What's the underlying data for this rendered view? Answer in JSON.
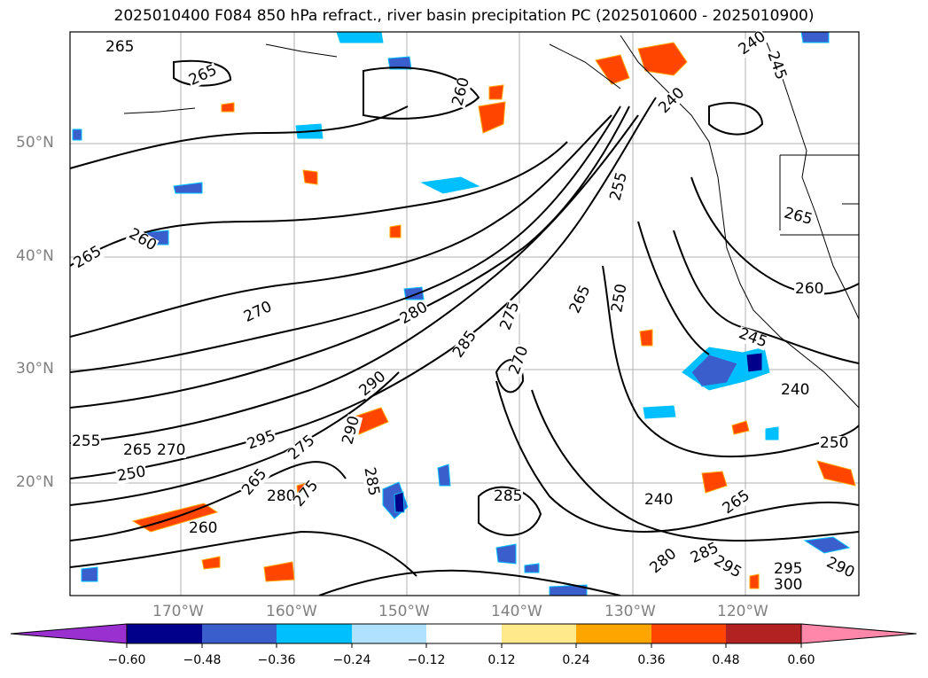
{
  "title": "2025010400 F084 850 hPa refract., river basin precipitation PC (2025010600 - 2025010900)",
  "lat_labels": [
    "50°N",
    "40°N",
    "30°N",
    "20°N"
  ],
  "lon_labels": [
    "170°W",
    "160°W",
    "150°W",
    "140°W",
    "130°W",
    "120°W"
  ],
  "contour_labels": [
    "265",
    "265",
    "260",
    "265",
    "270",
    "280",
    "285",
    "290",
    "295",
    "255",
    "265",
    "270",
    "250",
    "275",
    "280",
    "260",
    "265",
    "275",
    "290",
    "285",
    "285",
    "270",
    "275",
    "260",
    "250",
    "265",
    "255",
    "240",
    "245",
    "240",
    "265",
    "260",
    "245",
    "240",
    "250",
    "240",
    "265",
    "280",
    "285",
    "295",
    "295",
    "290",
    "300"
  ],
  "colorbar": {
    "ticks": [
      "−0.60",
      "−0.48",
      "−0.36",
      "−0.24",
      "−0.12",
      "0.12",
      "0.24",
      "0.36",
      "0.48",
      "0.60"
    ],
    "colors": [
      "#9b30d0",
      "#00008b",
      "#3a5fcd",
      "#00bfff",
      "#b0e2ff",
      "#ffffff",
      "#ffe98a",
      "#ffa500",
      "#ff4500",
      "#b22222",
      "#ff88aa"
    ]
  }
}
